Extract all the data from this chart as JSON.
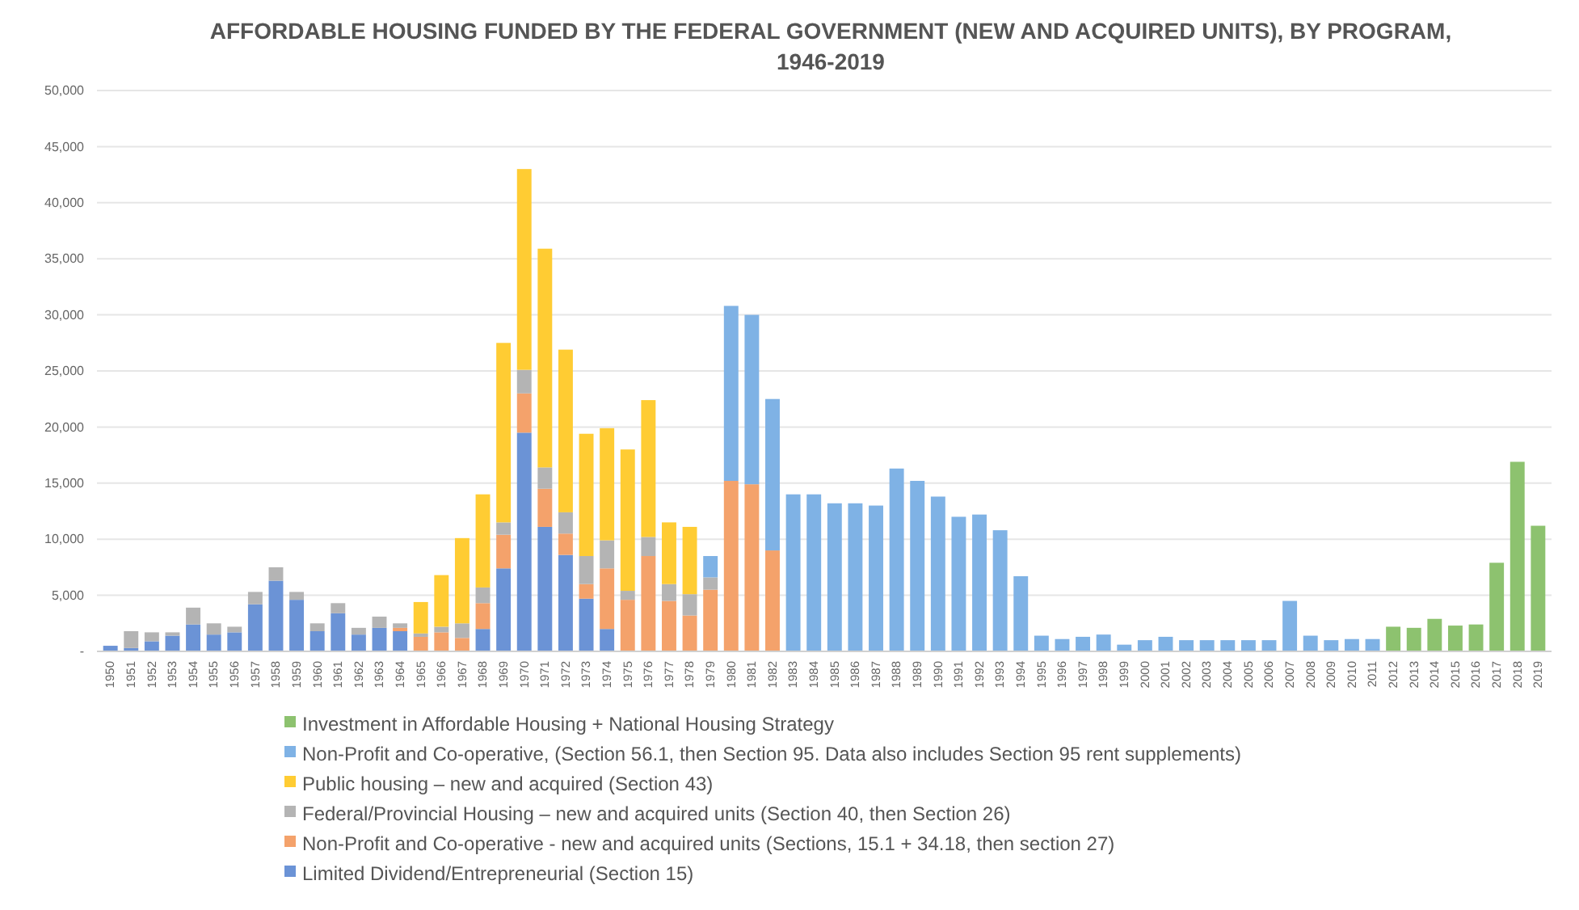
{
  "chart_data": {
    "type": "bar",
    "stacked": true,
    "title": "AFFORDABLE HOUSING FUNDED BY THE FEDERAL GOVERNMENT (NEW AND ACQUIRED UNITS), BY PROGRAM, 1946-2019",
    "categories": [
      "1950",
      "1951",
      "1952",
      "1953",
      "1954",
      "1955",
      "1956",
      "1957",
      "1958",
      "1959",
      "1960",
      "1961",
      "1962",
      "1963",
      "1964",
      "1965",
      "1966",
      "1967",
      "1968",
      "1969",
      "1970",
      "1971",
      "1972",
      "1973",
      "1974",
      "1975",
      "1976",
      "1977",
      "1978",
      "1979",
      "1980",
      "1981",
      "1982",
      "1983",
      "1984",
      "1985",
      "1986",
      "1987",
      "1988",
      "1989",
      "1990",
      "1991",
      "1992",
      "1993",
      "1994",
      "1995",
      "1996",
      "1997",
      "1998",
      "1999",
      "2000",
      "2001",
      "2002",
      "2003",
      "2004",
      "2005",
      "2006",
      "2007",
      "2008",
      "2009",
      "2010",
      "2011",
      "2012",
      "2013",
      "2014",
      "2015",
      "2016",
      "2017",
      "2018",
      "2019"
    ],
    "series": [
      {
        "name": "Limited Dividend/Entrepreneurial (Section 15)",
        "color": "#6b93d6",
        "values": [
          500,
          300,
          900,
          1400,
          2400,
          1500,
          1700,
          4200,
          6300,
          4600,
          1800,
          3400,
          1500,
          2100,
          1800,
          null,
          null,
          null,
          2000,
          7400,
          19500,
          11100,
          8600,
          4700,
          2000,
          null,
          null,
          null,
          null,
          null,
          null,
          null,
          null,
          null,
          null,
          null,
          null,
          null,
          null,
          null,
          null,
          null,
          null,
          null,
          null,
          null,
          null,
          null,
          null,
          null,
          null,
          null,
          null,
          null,
          null,
          null,
          null,
          null,
          null,
          null,
          null,
          null,
          null,
          null,
          null,
          null,
          null,
          null,
          null,
          null
        ]
      },
      {
        "name": "Non-Profit and Co-operative - new and acquired units (Sections, 15.1 + 34.18, then section 27)",
        "color": "#f4a26b",
        "values": [
          null,
          null,
          null,
          null,
          null,
          null,
          null,
          null,
          null,
          null,
          null,
          null,
          null,
          null,
          300,
          1300,
          1700,
          1200,
          2300,
          3000,
          3500,
          3400,
          1900,
          1300,
          5400,
          4600,
          8500,
          4500,
          3200,
          5500,
          15200,
          14900,
          9000,
          null,
          null,
          null,
          null,
          null,
          null,
          null,
          null,
          null,
          null,
          null,
          null,
          null,
          null,
          null,
          null,
          null,
          null,
          null,
          null,
          null,
          null,
          null,
          null,
          null,
          null,
          null,
          null,
          null,
          null,
          null,
          null,
          null,
          null,
          null,
          null,
          null
        ]
      },
      {
        "name": "Federal/Provincial  Housing – new and acquired units (Section 40, then Section 26)",
        "color": "#b4b4b4",
        "values": [
          null,
          1500,
          800,
          300,
          1500,
          1000,
          500,
          1100,
          1200,
          700,
          700,
          900,
          600,
          1000,
          400,
          300,
          500,
          1300,
          1400,
          1100,
          2100,
          1900,
          1900,
          2500,
          2500,
          800,
          1700,
          1500,
          1900,
          1100,
          null,
          null,
          null,
          null,
          null,
          null,
          null,
          null,
          null,
          null,
          null,
          null,
          null,
          null,
          null,
          null,
          null,
          null,
          null,
          null,
          null,
          null,
          null,
          null,
          null,
          null,
          null,
          null,
          null,
          null,
          null,
          null,
          null,
          null,
          null,
          null,
          null,
          null,
          null,
          null
        ]
      },
      {
        "name": "Public housing – new and acquired (Section 43)",
        "color": "#ffcc33",
        "values": [
          null,
          null,
          null,
          null,
          null,
          null,
          null,
          null,
          null,
          null,
          null,
          null,
          null,
          null,
          null,
          2800,
          4600,
          7600,
          8300,
          16000,
          17900,
          19500,
          14500,
          10900,
          10000,
          12600,
          12200,
          5500,
          6000,
          null,
          null,
          null,
          null,
          null,
          null,
          null,
          null,
          null,
          null,
          null,
          null,
          null,
          null,
          null,
          null,
          null,
          null,
          null,
          null,
          null,
          null,
          null,
          null,
          null,
          null,
          null,
          null,
          null,
          null,
          null,
          null,
          null,
          null,
          null,
          null,
          null,
          null,
          null,
          null,
          null
        ]
      },
      {
        "name": "Non-Profit and Co-operative, (Section 56.1, then Section 95. Data also includes Section 95 rent supplements)",
        "color": "#7fb2e5",
        "values": [
          null,
          null,
          null,
          null,
          null,
          null,
          null,
          null,
          null,
          null,
          null,
          null,
          null,
          null,
          null,
          null,
          null,
          null,
          null,
          null,
          null,
          null,
          null,
          null,
          null,
          null,
          null,
          null,
          null,
          1900,
          15600,
          15100,
          13500,
          14000,
          14000,
          13200,
          13200,
          13000,
          16300,
          15200,
          13800,
          12000,
          12200,
          10800,
          6700,
          1400,
          1100,
          1300,
          1500,
          600,
          1000,
          1300,
          1000,
          1000,
          1000,
          1000,
          1000,
          4500,
          1400,
          1000,
          1100,
          1100,
          null,
          null,
          null,
          null,
          null,
          null,
          null,
          null
        ]
      },
      {
        "name": "Investment in Affordable Housing + National Housing Strategy",
        "color": "#8dc26f",
        "values": [
          null,
          null,
          null,
          null,
          null,
          null,
          null,
          null,
          null,
          null,
          null,
          null,
          null,
          null,
          null,
          null,
          null,
          null,
          null,
          null,
          null,
          null,
          null,
          null,
          null,
          null,
          null,
          null,
          null,
          null,
          null,
          null,
          null,
          null,
          null,
          null,
          null,
          null,
          null,
          null,
          null,
          null,
          null,
          null,
          null,
          null,
          null,
          null,
          null,
          null,
          null,
          null,
          null,
          null,
          null,
          null,
          null,
          null,
          null,
          null,
          null,
          null,
          2200,
          2100,
          2900,
          2300,
          2400,
          7900,
          16900,
          11200
        ]
      }
    ],
    "ylim": [
      0,
      50000
    ],
    "yticks": [
      {
        "value": 0,
        "label": "-"
      },
      {
        "value": 5000,
        "label": "5,000"
      },
      {
        "value": 10000,
        "label": "10,000"
      },
      {
        "value": 15000,
        "label": "15,000"
      },
      {
        "value": 20000,
        "label": "20,000"
      },
      {
        "value": 25000,
        "label": "25,000"
      },
      {
        "value": 30000,
        "label": "30,000"
      },
      {
        "value": 35000,
        "label": "35,000"
      },
      {
        "value": 40000,
        "label": "40,000"
      },
      {
        "value": 45000,
        "label": "45,000"
      },
      {
        "value": 50000,
        "label": "50,000"
      }
    ],
    "grid": "y",
    "legend": "bottom"
  }
}
